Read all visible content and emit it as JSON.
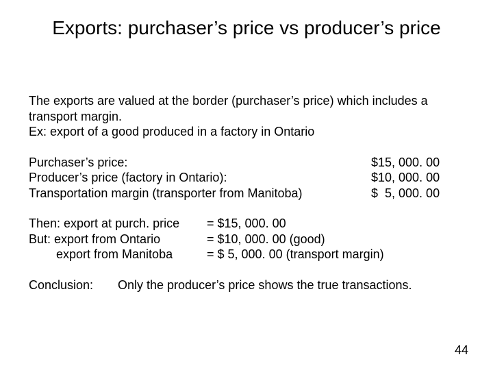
{
  "title": "Exports: purchaser’s price vs producer’s price",
  "intro": {
    "line1": "The exports are valued at the border (purchaser’s price) which includes a transport margin.",
    "line2": "Ex: export of a good produced in a factory in Ontario"
  },
  "prices": {
    "rows": [
      {
        "label": "Purchaser’s price:",
        "value": "$15, 000. 00"
      },
      {
        "label": "Producer’s price (factory in Ontario):",
        "value": "$10, 000. 00"
      },
      {
        "label": "Transportation margin (transporter from Manitoba)",
        "value": "$  5, 000. 00"
      }
    ]
  },
  "breakdown": {
    "rows": [
      {
        "label": "Then: export at purch. price",
        "value": "= $15, 000. 00"
      },
      {
        "label": "But: export from Ontario",
        "value": "= $10, 000. 00 (good)"
      },
      {
        "label": "        export from Manitoba",
        "value": "= $  5, 000. 00 (transport margin)"
      }
    ]
  },
  "conclusion": {
    "label": "Conclusion:",
    "text": "Only the producer’s price shows the true transactions."
  },
  "page_number": "44",
  "style": {
    "background_color": "#ffffff",
    "text_color": "#000000",
    "title_fontsize": 28,
    "body_fontsize": 18,
    "font_family": "Arial"
  }
}
